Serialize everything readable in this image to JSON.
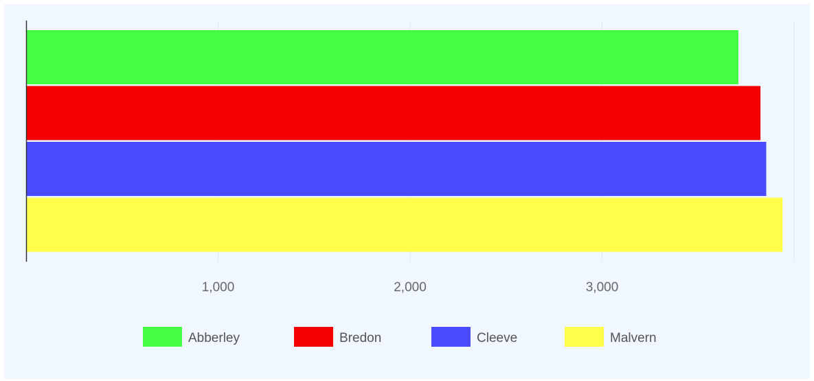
{
  "chart_data": {
    "type": "bar",
    "orientation": "horizontal",
    "series": [
      {
        "name": "Abberley",
        "value": 3710,
        "color": "#44ff44"
      },
      {
        "name": "Bredon",
        "value": 3825,
        "color": "#f50000"
      },
      {
        "name": "Cleeve",
        "value": 3855,
        "color": "#4a4aff"
      },
      {
        "name": "Malvern",
        "value": 3940,
        "color": "#ffff4a"
      }
    ],
    "xlim": [
      0,
      4000
    ],
    "xticks": [
      1000,
      2000,
      3000,
      4000
    ],
    "xtick_labels": [
      "1,000",
      "2,000",
      "3,000",
      ""
    ],
    "grid": true,
    "legend_position": "bottom"
  }
}
